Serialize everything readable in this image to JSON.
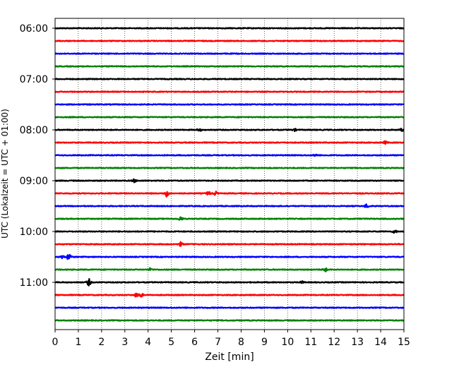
{
  "chart_data": {
    "type": "line",
    "title": "",
    "xlabel": "Zeit  [min]",
    "ylabel": "UTC (Lokalzeit = UTC + 01:00)",
    "xlim": [
      0,
      15
    ],
    "x_ticks": [
      0,
      1,
      2,
      3,
      4,
      5,
      6,
      7,
      8,
      9,
      10,
      11,
      12,
      13,
      14,
      15
    ],
    "y_tick_labels": [
      "06:00",
      "07:00",
      "08:00",
      "09:00",
      "10:00",
      "11:00"
    ],
    "grid": "vertical dotted",
    "trace_colors": [
      "#000000",
      "#ff0000",
      "#0000ff",
      "#008000"
    ],
    "traces": [
      {
        "start": "06:00",
        "events": []
      },
      {
        "start": "06:15",
        "events": []
      },
      {
        "start": "06:30",
        "events": []
      },
      {
        "start": "06:45",
        "events": []
      },
      {
        "start": "07:00",
        "events": []
      },
      {
        "start": "07:15",
        "events": []
      },
      {
        "start": "07:30",
        "events": []
      },
      {
        "start": "07:45",
        "events": []
      },
      {
        "start": "08:00",
        "events": [
          {
            "t": 6.2,
            "amp": 0.35
          },
          {
            "t": 10.3,
            "amp": 0.3
          },
          {
            "t": 14.9,
            "amp": 0.3
          }
        ]
      },
      {
        "start": "08:15",
        "events": [
          {
            "t": 14.2,
            "amp": 0.35
          }
        ]
      },
      {
        "start": "08:30",
        "events": [
          {
            "t": 11.2,
            "amp": 0.3
          }
        ]
      },
      {
        "start": "08:45",
        "events": []
      },
      {
        "start": "09:00",
        "events": [
          {
            "t": 3.4,
            "amp": 0.4
          }
        ]
      },
      {
        "start": "09:15",
        "events": [
          {
            "t": 4.8,
            "amp": 0.9
          },
          {
            "t": 6.6,
            "amp": 0.5
          },
          {
            "t": 6.9,
            "amp": 0.5
          }
        ]
      },
      {
        "start": "09:30",
        "events": [
          {
            "t": 13.4,
            "amp": 0.6
          }
        ]
      },
      {
        "start": "09:45",
        "events": [
          {
            "t": 5.4,
            "amp": 0.6
          }
        ]
      },
      {
        "start": "10:00",
        "events": [
          {
            "t": 14.6,
            "amp": 0.4
          }
        ]
      },
      {
        "start": "10:15",
        "events": [
          {
            "t": 5.4,
            "amp": 0.55
          }
        ]
      },
      {
        "start": "10:30",
        "events": [
          {
            "t": 0.3,
            "amp": 0.4
          },
          {
            "t": 0.6,
            "amp": 1.1
          }
        ]
      },
      {
        "start": "10:45",
        "events": [
          {
            "t": 4.1,
            "amp": 0.4
          },
          {
            "t": 11.6,
            "amp": 0.6
          }
        ]
      },
      {
        "start": "11:00",
        "events": [
          {
            "t": 1.45,
            "amp": 0.9
          },
          {
            "t": 10.6,
            "amp": 0.3
          }
        ]
      },
      {
        "start": "11:15",
        "events": [
          {
            "t": 3.5,
            "amp": 0.5
          },
          {
            "t": 3.7,
            "amp": 0.5
          }
        ]
      },
      {
        "start": "11:30",
        "events": []
      },
      {
        "start": "11:45",
        "events": []
      }
    ]
  }
}
